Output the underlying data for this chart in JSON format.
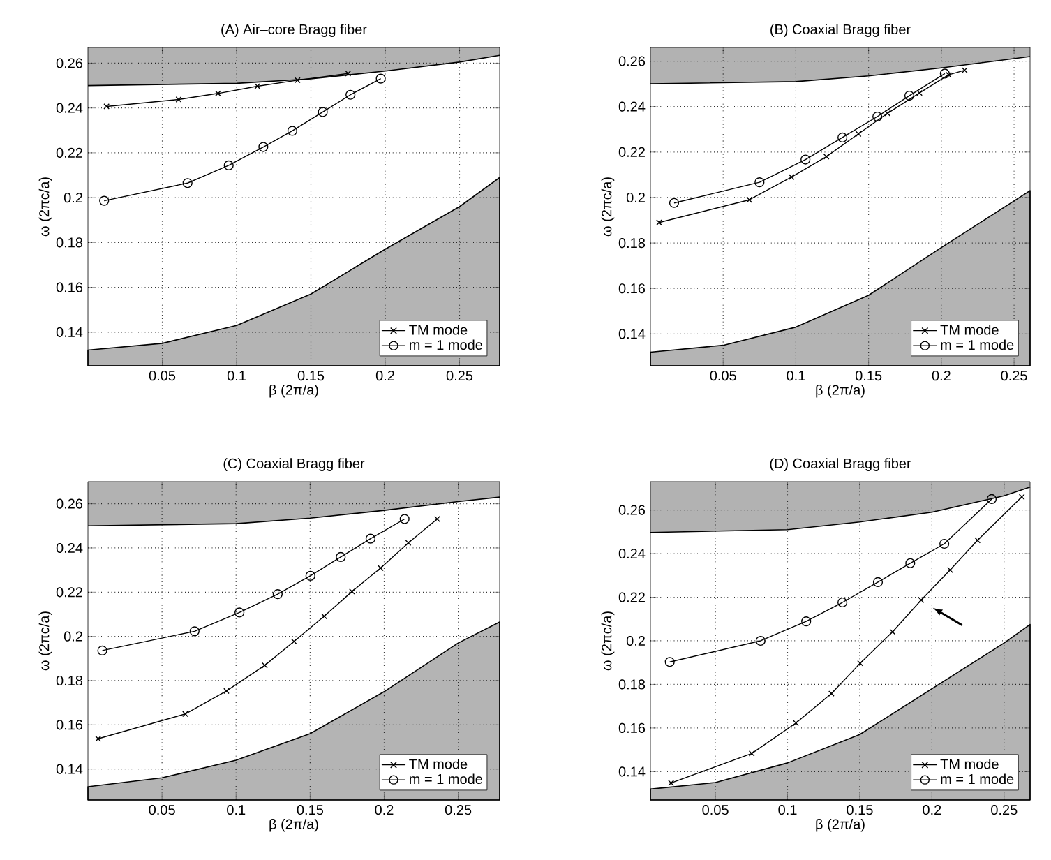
{
  "chart_data": [
    {
      "type": "line",
      "title": "(A) Air–core Bragg fiber",
      "xlabel": "β (2π/a)",
      "ylabel": "ω (2πc/a)",
      "xlim": [
        0,
        0.277
      ],
      "ylim": [
        0.125,
        0.267
      ],
      "xticks": [
        0.05,
        0.1,
        0.15,
        0.2,
        0.25
      ],
      "yticks": [
        0.14,
        0.16,
        0.18,
        0.2,
        0.22,
        0.24,
        0.26
      ],
      "grid": true,
      "legend": "bottom right",
      "series": [
        {
          "type": "line",
          "color": "#000000",
          "x": [
            0,
            0.1,
            0.15,
            0.2,
            0.25,
            0.277
          ],
          "values": [
            0.25,
            0.251,
            0.253,
            0.2565,
            0.2605,
            0.2635
          ],
          "lower": [
            0.25,
            0.251,
            0.253,
            0.2565,
            0.2605,
            0.2635
          ],
          "upper": [
            0.267,
            0.267,
            0.267,
            0.267,
            0.267,
            0.267
          ]
        },
        {
          "type": "area",
          "color": "#b4b4b4",
          "x": [
            0,
            0.05,
            0.1,
            0.15,
            0.2,
            0.25,
            0.277
          ],
          "values": [
            0.132,
            0.135,
            0.143,
            0.157,
            0.177,
            0.196,
            0.209
          ]
        },
        {
          "name": "TM mode",
          "color": "#000000",
          "marker": "cross",
          "x": [
            0.0125,
            0.061,
            0.0875,
            0.114,
            0.141,
            0.175
          ],
          "values": [
            0.2407,
            0.2438,
            0.2465,
            0.2497,
            0.2524,
            0.2554
          ]
        },
        {
          "name": "m = 1 mode",
          "color": "#000000",
          "marker": "circle",
          "x": [
            0.0109,
            0.067,
            0.0947,
            0.118,
            0.1375,
            0.158,
            0.1766,
            0.197
          ],
          "values": [
            0.1986,
            0.2065,
            0.2144,
            0.2226,
            0.2298,
            0.2382,
            0.2459,
            0.2531
          ]
        }
      ]
    },
    {
      "type": "line",
      "title": "(B) Coaxial Bragg fiber",
      "xlabel": "β (2π/a)",
      "ylabel": "ω (2πc/a)",
      "xlim": [
        0,
        0.261
      ],
      "ylim": [
        0.126,
        0.266
      ],
      "xticks": [
        0.05,
        0.1,
        0.15,
        0.2,
        0.25
      ],
      "yticks": [
        0.14,
        0.16,
        0.18,
        0.2,
        0.22,
        0.24,
        0.26
      ],
      "grid": true,
      "legend": "bottom right",
      "series": [
        {
          "type": "line",
          "color": "#000000",
          "x": [
            0,
            0.1,
            0.15,
            0.2,
            0.261
          ],
          "values": [
            0.25,
            0.251,
            0.2535,
            0.257,
            0.262
          ],
          "lower": [
            0.25,
            0.251,
            0.2535,
            0.257,
            0.262
          ],
          "upper": [
            0.266,
            0.266,
            0.266,
            0.266,
            0.266
          ]
        },
        {
          "type": "area",
          "color": "#b4b4b4",
          "x": [
            0,
            0.05,
            0.1,
            0.15,
            0.2,
            0.261
          ],
          "values": [
            0.132,
            0.135,
            0.143,
            0.157,
            0.178,
            0.203
          ]
        },
        {
          "name": "TM mode",
          "color": "#000000",
          "marker": "cross",
          "x": [
            0.006,
            0.068,
            0.097,
            0.121,
            0.143,
            0.163,
            0.185,
            0.205,
            0.216
          ],
          "values": [
            0.189,
            0.199,
            0.209,
            0.218,
            0.228,
            0.237,
            0.246,
            0.254,
            0.256
          ]
        },
        {
          "name": "m = 1 mode",
          "color": "#000000",
          "marker": "circle",
          "x": [
            0.0163,
            0.075,
            0.1066,
            0.132,
            0.156,
            0.178,
            0.2024
          ],
          "values": [
            0.1976,
            0.2067,
            0.2167,
            0.2264,
            0.2356,
            0.2448,
            0.2545
          ]
        }
      ]
    },
    {
      "type": "line",
      "title": "(C) Coaxial Bragg fiber",
      "xlabel": "β (2π/a)",
      "ylabel": "ω (2πc/a)",
      "xlim": [
        0,
        0.278
      ],
      "ylim": [
        0.126,
        0.27
      ],
      "xticks": [
        0.05,
        0.1,
        0.15,
        0.2,
        0.25
      ],
      "yticks": [
        0.14,
        0.16,
        0.18,
        0.2,
        0.22,
        0.24,
        0.26
      ],
      "grid": true,
      "legend": "bottom right",
      "series": [
        {
          "type": "line",
          "color": "#000000",
          "x": [
            0,
            0.1,
            0.15,
            0.2,
            0.25,
            0.278
          ],
          "values": [
            0.25,
            0.251,
            0.2535,
            0.257,
            0.261,
            0.263
          ],
          "lower": [
            0.25,
            0.251,
            0.2535,
            0.257,
            0.261,
            0.263
          ],
          "upper": [
            0.27,
            0.27,
            0.27,
            0.27,
            0.27,
            0.27
          ]
        },
        {
          "type": "area",
          "color": "#b4b4b4",
          "x": [
            0,
            0.05,
            0.1,
            0.15,
            0.2,
            0.25,
            0.278
          ],
          "values": [
            0.132,
            0.136,
            0.144,
            0.156,
            0.175,
            0.197,
            0.2065
          ]
        },
        {
          "name": "TM mode",
          "color": "#000000",
          "marker": "cross",
          "x": [
            0.0069,
            0.0657,
            0.0935,
            0.1194,
            0.1391,
            0.1595,
            0.1783,
            0.1976,
            0.2163,
            0.2358
          ],
          "values": [
            0.1537,
            0.1649,
            0.1753,
            0.1869,
            0.1977,
            0.2091,
            0.2203,
            0.2309,
            0.2423,
            0.2531
          ]
        },
        {
          "name": "m = 1 mode",
          "color": "#000000",
          "marker": "circle",
          "x": [
            0.0097,
            0.072,
            0.1023,
            0.1281,
            0.1502,
            0.1707,
            0.1908,
            0.2138
          ],
          "values": [
            0.1936,
            0.2023,
            0.2108,
            0.2191,
            0.2274,
            0.2359,
            0.2442,
            0.2531
          ]
        }
      ]
    },
    {
      "type": "line",
      "title": "(D) Coaxial Bragg fiber",
      "xlabel": "β (2π/a)",
      "ylabel": "ω (2πc/a)",
      "xlim": [
        0.005,
        0.268
      ],
      "ylim": [
        0.127,
        0.273
      ],
      "xticks": [
        0.05,
        0.1,
        0.15,
        0.2,
        0.25
      ],
      "yticks": [
        0.14,
        0.16,
        0.18,
        0.2,
        0.22,
        0.24,
        0.26
      ],
      "grid": true,
      "legend": "bottom right",
      "series": [
        {
          "type": "line",
          "color": "#000000",
          "x": [
            0.005,
            0.1,
            0.15,
            0.2,
            0.25,
            0.268
          ],
          "values": [
            0.2497,
            0.251,
            0.2545,
            0.259,
            0.2665,
            0.2705
          ],
          "lower": [
            0.2497,
            0.251,
            0.2545,
            0.259,
            0.2665,
            0.2705
          ],
          "upper": [
            0.273,
            0.273,
            0.273,
            0.273,
            0.273,
            0.273
          ]
        },
        {
          "type": "area",
          "color": "#b4b4b4",
          "x": [
            0.005,
            0.05,
            0.1,
            0.15,
            0.2,
            0.25,
            0.268
          ],
          "values": [
            0.132,
            0.135,
            0.144,
            0.157,
            0.178,
            0.199,
            0.2075
          ]
        },
        {
          "name": "TM mode",
          "color": "#000000",
          "marker": "cross",
          "x": [
            0.0193,
            0.0752,
            0.1058,
            0.1304,
            0.1503,
            0.1727,
            0.1926,
            0.2126,
            0.2316,
            0.2623
          ],
          "values": [
            0.1348,
            0.1483,
            0.1623,
            0.1758,
            0.1897,
            0.2041,
            0.2187,
            0.2325,
            0.2461,
            0.266
          ]
        },
        {
          "name": "m = 1 mode",
          "color": "#000000",
          "marker": "circle",
          "x": [
            0.0184,
            0.0813,
            0.1129,
            0.138,
            0.1626,
            0.185,
            0.2086,
            0.2414
          ],
          "values": [
            0.1903,
            0.2,
            0.2089,
            0.2176,
            0.2269,
            0.2356,
            0.2445,
            0.265
          ]
        }
      ]
    }
  ]
}
